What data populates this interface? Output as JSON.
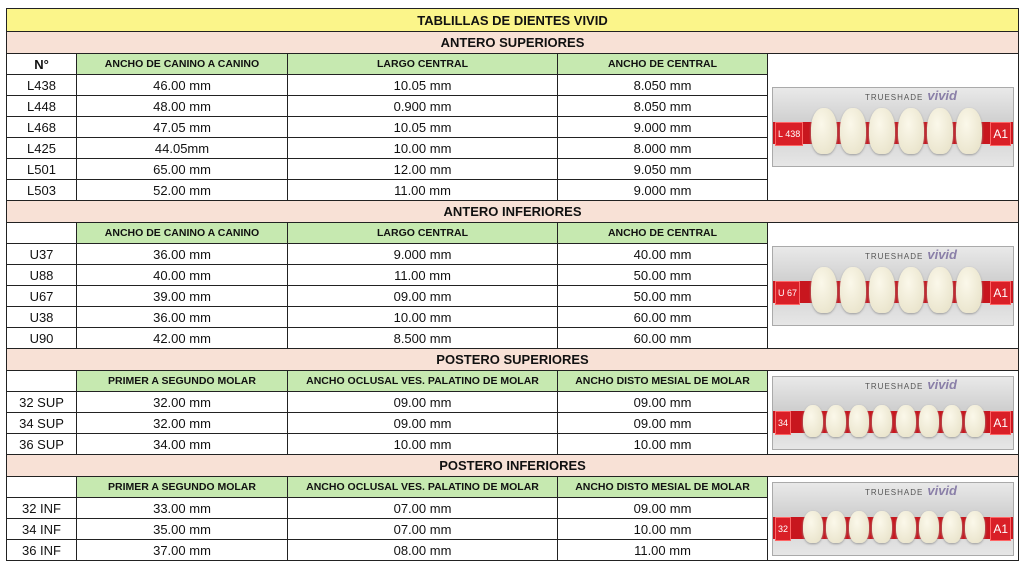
{
  "title": "TABLILLAS DE DIENTES VIVID",
  "brand": "TRUESHADE",
  "brand_logo": "vivid",
  "number_header": "N°",
  "colors": {
    "title_bg": "#fbf58a",
    "section_bg": "#f8e1d6",
    "header_bg": "#c6e9b0",
    "tray_red": "#c8161e"
  },
  "sections": [
    {
      "name": "ANTERO SUPERIORES",
      "headers": [
        "ANCHO DE CANINO A CANINO",
        "LARGO CENTRAL",
        "ANCHO DE CENTRAL"
      ],
      "show_number_header": true,
      "image": {
        "left_label": "L 438",
        "shade": "A1",
        "teeth": 6
      },
      "rows": [
        [
          "L438",
          "46.00 mm",
          "10.05 mm",
          "8.050 mm"
        ],
        [
          "L448",
          "48.00 mm",
          "0.900 mm",
          "8.050 mm"
        ],
        [
          "L468",
          "47.05 mm",
          "10.05 mm",
          "9.000 mm"
        ],
        [
          "L425",
          "44.05mm",
          "10.00 mm",
          "8.000 mm"
        ],
        [
          "L501",
          "65.00 mm",
          "12.00 mm",
          "9.050 mm"
        ],
        [
          "L503",
          "52.00 mm",
          "11.00 mm",
          "9.000 mm"
        ]
      ]
    },
    {
      "name": "ANTERO INFERIORES",
      "headers": [
        "ANCHO DE CANINO A CANINO",
        "LARGO CENTRAL",
        "ANCHO DE CENTRAL"
      ],
      "show_number_header": false,
      "image": {
        "left_label": "U 67",
        "shade": "A1",
        "teeth": 6
      },
      "rows": [
        [
          "U37",
          "36.00 mm",
          "9.000 mm",
          "40.00 mm"
        ],
        [
          "U88",
          "40.00 mm",
          "11.00 mm",
          "50.00 mm"
        ],
        [
          "U67",
          "39.00 mm",
          "09.00 mm",
          "50.00 mm"
        ],
        [
          "U38",
          "36.00 mm",
          "10.00 mm",
          "60.00 mm"
        ],
        [
          "U90",
          "42.00 mm",
          "8.500 mm",
          "60.00 mm"
        ]
      ]
    },
    {
      "name": "POSTERO SUPERIORES",
      "headers": [
        "PRIMER A SEGUNDO MOLAR",
        "ANCHO OCLUSAL VES. PALATINO DE MOLAR",
        "ANCHO DISTO MESIAL DE MOLAR"
      ],
      "show_number_header": false,
      "image": {
        "left_label": "34",
        "shade": "A1",
        "teeth": 8
      },
      "rows": [
        [
          "32 SUP",
          "32.00 mm",
          "09.00 mm",
          "09.00 mm"
        ],
        [
          "34 SUP",
          "32.00 mm",
          "09.00 mm",
          "09.00 mm"
        ],
        [
          "36 SUP",
          "34.00 mm",
          "10.00 mm",
          "10.00 mm"
        ]
      ]
    },
    {
      "name": "POSTERO INFERIORES",
      "headers": [
        "PRIMER A SEGUNDO MOLAR",
        "ANCHO OCLUSAL VES. PALATINO DE MOLAR",
        "ANCHO DISTO MESIAL DE MOLAR"
      ],
      "show_number_header": false,
      "image": {
        "left_label": "32",
        "shade": "A1",
        "teeth": 8
      },
      "rows": [
        [
          "32 INF",
          "33.00 mm",
          "07.00 mm",
          "09.00 mm"
        ],
        [
          "34 INF",
          "35.00 mm",
          "07.00 mm",
          "10.00 mm"
        ],
        [
          "36 INF",
          "37.00 mm",
          "08.00 mm",
          "11.00 mm"
        ]
      ]
    }
  ]
}
